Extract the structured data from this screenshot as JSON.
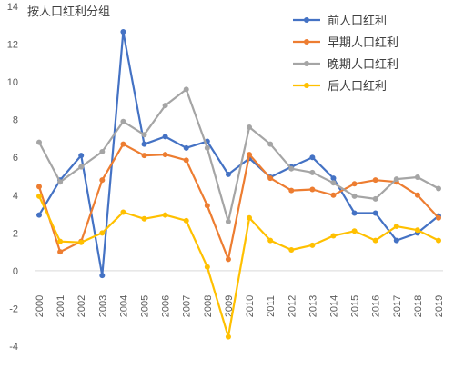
{
  "chart_data": {
    "type": "line",
    "title": "按人口红利分组",
    "xlabel": "",
    "ylabel": "",
    "ylim": [
      -4,
      14
    ],
    "yticks": [
      -4,
      -2,
      0,
      2,
      4,
      6,
      8,
      10,
      12,
      14
    ],
    "grid": false,
    "legend_position": "top-right",
    "categories": [
      "2000",
      "2001",
      "2002",
      "2003",
      "2004",
      "2005",
      "2006",
      "2007",
      "2008",
      "2009",
      "2010",
      "2011",
      "2012",
      "2013",
      "2014",
      "2015",
      "2016",
      "2017",
      "2018",
      "2019"
    ],
    "series": [
      {
        "name": "前人口红利",
        "color": "#4472C4",
        "values": [
          2.95,
          4.8,
          6.1,
          -0.25,
          12.65,
          6.7,
          7.1,
          6.5,
          6.85,
          5.1,
          5.95,
          4.95,
          5.5,
          6.0,
          4.9,
          3.05,
          3.05,
          1.6,
          2.0,
          2.9
        ]
      },
      {
        "name": "早期人口红利",
        "color": "#ED7D31",
        "values": [
          4.45,
          1.0,
          1.55,
          4.8,
          6.7,
          6.1,
          6.15,
          5.85,
          3.45,
          0.6,
          6.15,
          4.9,
          4.25,
          4.3,
          4.0,
          4.6,
          4.8,
          4.7,
          4.0,
          2.8
        ]
      },
      {
        "name": "晚期人口红利",
        "color": "#A5A5A5",
        "values": [
          6.8,
          4.7,
          5.5,
          6.3,
          7.9,
          7.2,
          8.75,
          9.6,
          6.5,
          2.6,
          7.6,
          6.7,
          5.4,
          5.2,
          4.65,
          3.95,
          3.8,
          4.85,
          4.95,
          4.35
        ]
      },
      {
        "name": "后人口红利",
        "color": "#FFC000",
        "values": [
          3.95,
          1.55,
          1.5,
          2.0,
          3.1,
          2.75,
          2.95,
          2.65,
          0.2,
          -3.5,
          2.8,
          1.6,
          1.1,
          1.35,
          1.85,
          2.1,
          1.6,
          2.35,
          2.15,
          1.6
        ]
      }
    ]
  }
}
